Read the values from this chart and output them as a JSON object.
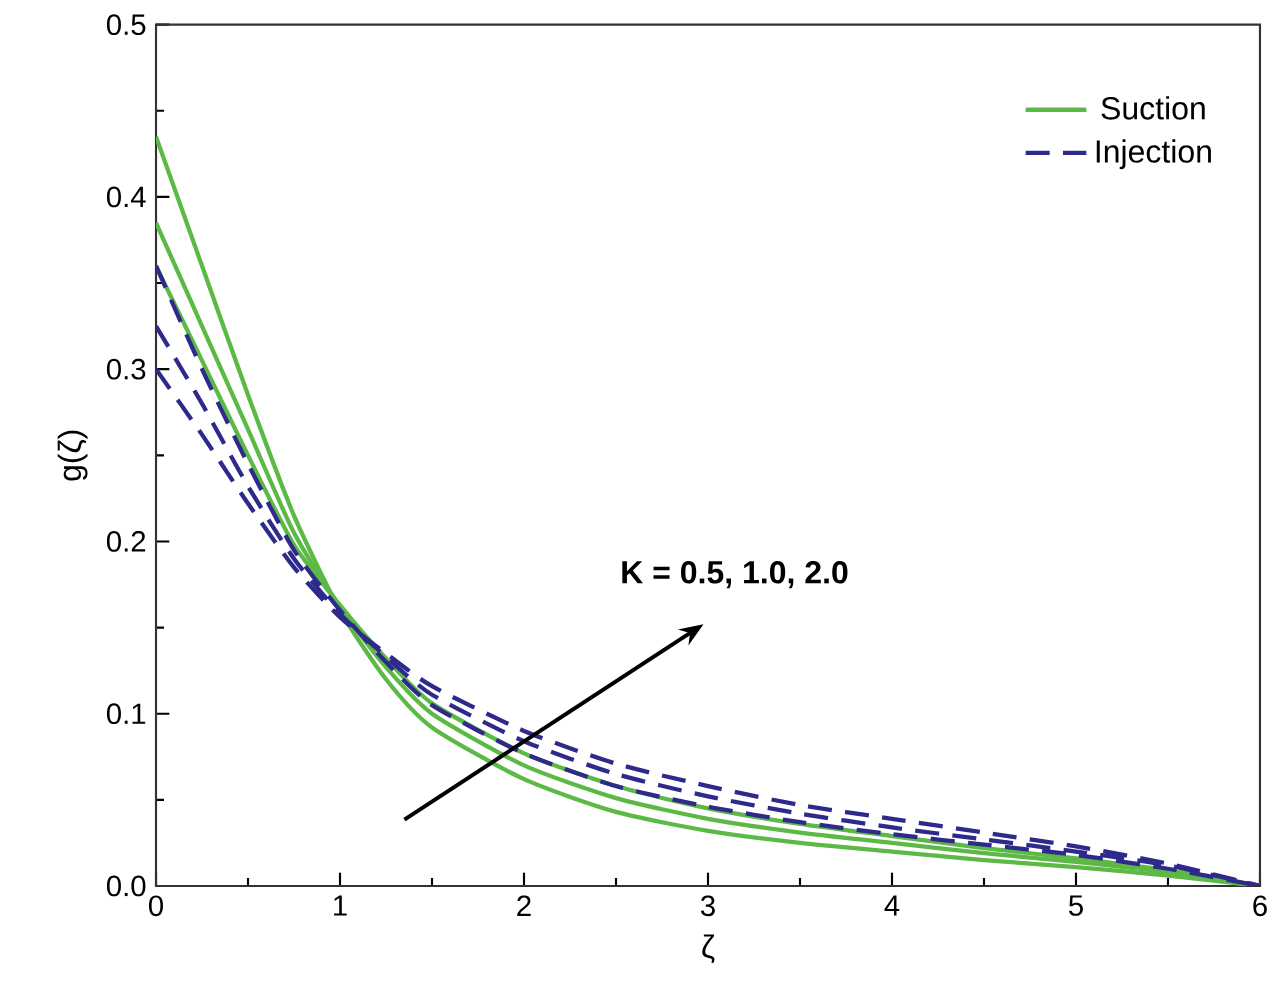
{
  "chart_data": {
    "type": "line",
    "xlabel": "ζ",
    "ylabel": "g(ζ)",
    "x": [
      0,
      0.25,
      0.5,
      0.75,
      1.0,
      1.25,
      1.5,
      2,
      2.5,
      3,
      3.5,
      4,
      4.5,
      5,
      5.5,
      6
    ],
    "series": [
      {
        "name": "Suction",
        "color": "#5cb946",
        "line_style": "solid",
        "values": [
          0.435,
          0.36,
          0.285,
          0.215,
          0.16,
          0.12,
          0.092,
          0.062,
          0.043,
          0.032,
          0.025,
          0.02,
          0.015,
          0.011,
          0.006,
          0
        ]
      },
      {
        "color": "#5cb946",
        "line_style": "solid",
        "values": [
          0.385,
          0.325,
          0.265,
          0.205,
          0.162,
          0.127,
          0.1,
          0.07,
          0.051,
          0.039,
          0.031,
          0.025,
          0.019,
          0.014,
          0.008,
          0
        ]
      },
      {
        "color": "#5cb946",
        "line_style": "solid",
        "values": [
          0.36,
          0.305,
          0.25,
          0.198,
          0.163,
          0.132,
          0.106,
          0.077,
          0.058,
          0.045,
          0.036,
          0.029,
          0.022,
          0.016,
          0.009,
          0
        ]
      },
      {
        "name": "Injection",
        "color": "#2e2a8c",
        "line_style": "dashed",
        "values": [
          0.36,
          0.3,
          0.245,
          0.195,
          0.16,
          0.13,
          0.105,
          0.077,
          0.058,
          0.046,
          0.037,
          0.03,
          0.024,
          0.018,
          0.01,
          0
        ]
      },
      {
        "color": "#2e2a8c",
        "line_style": "dashed",
        "values": [
          0.325,
          0.28,
          0.232,
          0.19,
          0.158,
          0.133,
          0.111,
          0.084,
          0.065,
          0.052,
          0.042,
          0.034,
          0.027,
          0.02,
          0.012,
          0
        ]
      },
      {
        "color": "#2e2a8c",
        "line_style": "dashed",
        "values": [
          0.3,
          0.262,
          0.222,
          0.185,
          0.156,
          0.135,
          0.116,
          0.09,
          0.071,
          0.058,
          0.047,
          0.039,
          0.031,
          0.023,
          0.013,
          0
        ]
      }
    ],
    "xlim": [
      0,
      6
    ],
    "ylim": [
      0,
      0.5
    ],
    "xticks": [
      0,
      1,
      2,
      3,
      4,
      5,
      6
    ],
    "yticks": [
      {
        "value": 0,
        "label": "0.0"
      },
      0.1,
      0.2,
      0.3,
      0.4,
      0.5
    ],
    "legend": "top right",
    "grid": false,
    "marker": "none",
    "annotations": [
      "K = 0.5, 1.0, 2.0"
    ]
  }
}
